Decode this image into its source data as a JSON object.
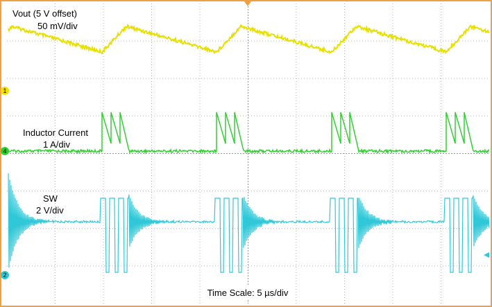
{
  "traces": [
    {
      "label": "Vout (5 V offset)",
      "scale": "50 mV/div"
    },
    {
      "label": "Inductor Current",
      "scale": "1 A/div"
    },
    {
      "label": "SW",
      "scale": "2 V/div"
    }
  ],
  "channels": [
    "1",
    "4",
    "2"
  ],
  "time_scale": "Time Scale: 5 µs/div"
}
